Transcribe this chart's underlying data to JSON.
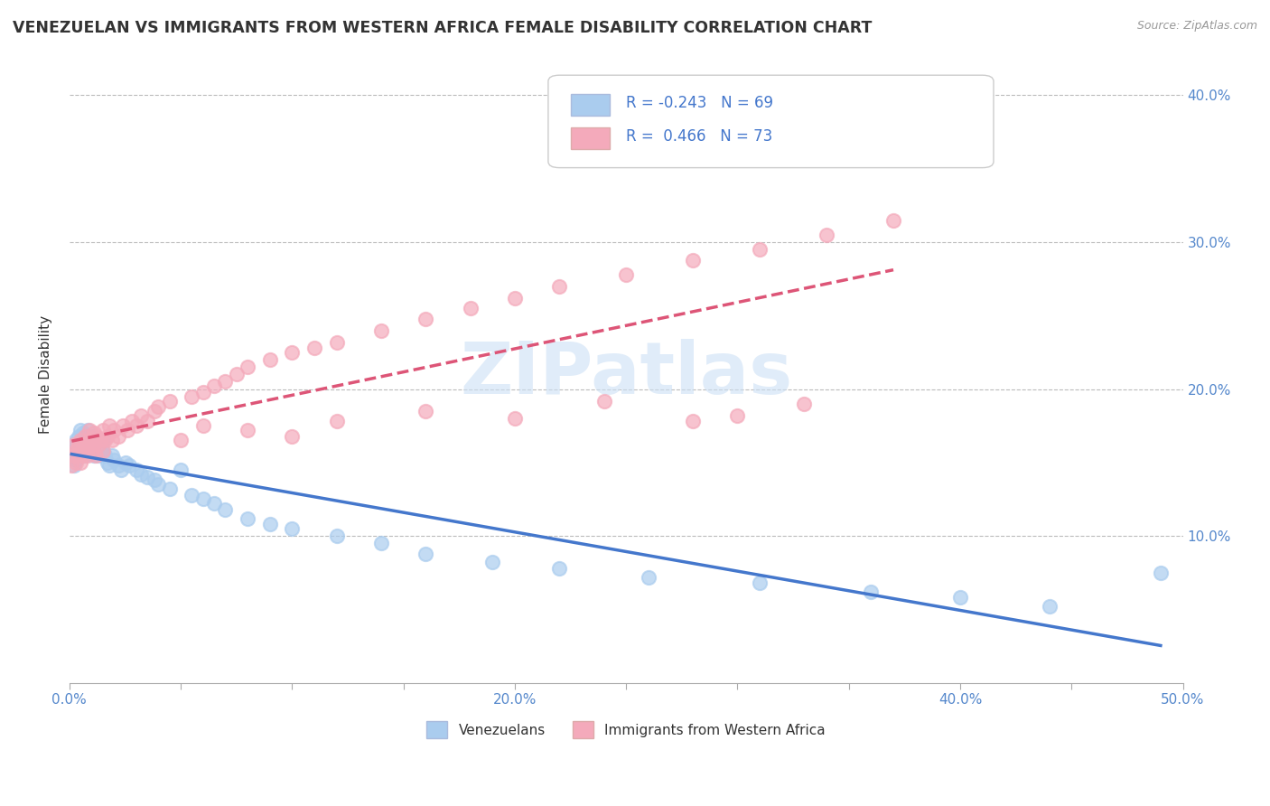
{
  "title": "VENEZUELAN VS IMMIGRANTS FROM WESTERN AFRICA FEMALE DISABILITY CORRELATION CHART",
  "source": "Source: ZipAtlas.com",
  "ylabel": "Female Disability",
  "legend1_label": "Venezuelans",
  "legend2_label": "Immigrants from Western Africa",
  "r1": -0.243,
  "n1": 69,
  "r2": 0.466,
  "n2": 73,
  "color1": "#aaccee",
  "color2": "#f4aabb",
  "line1_color": "#4477cc",
  "line2_color": "#dd5577",
  "line2_style": "--",
  "watermark": "ZIPatlas",
  "xlim": [
    0.0,
    0.5
  ],
  "ylim": [
    0.0,
    0.42
  ],
  "ytick_labels": [
    "10.0%",
    "20.0%",
    "30.0%",
    "40.0%"
  ],
  "background": "#ffffff",
  "grid_color": "#cccccc",
  "venezuelan_x": [
    0.001,
    0.001,
    0.002,
    0.002,
    0.002,
    0.003,
    0.003,
    0.003,
    0.004,
    0.004,
    0.004,
    0.005,
    0.005,
    0.005,
    0.006,
    0.006,
    0.006,
    0.007,
    0.007,
    0.007,
    0.008,
    0.008,
    0.009,
    0.009,
    0.01,
    0.01,
    0.011,
    0.011,
    0.012,
    0.012,
    0.013,
    0.013,
    0.014,
    0.015,
    0.015,
    0.016,
    0.017,
    0.018,
    0.019,
    0.02,
    0.022,
    0.023,
    0.025,
    0.027,
    0.03,
    0.032,
    0.035,
    0.038,
    0.04,
    0.045,
    0.05,
    0.055,
    0.06,
    0.065,
    0.07,
    0.08,
    0.09,
    0.1,
    0.12,
    0.14,
    0.16,
    0.19,
    0.22,
    0.26,
    0.31,
    0.36,
    0.4,
    0.44,
    0.49
  ],
  "venezuelan_y": [
    0.155,
    0.16,
    0.148,
    0.162,
    0.158,
    0.155,
    0.165,
    0.152,
    0.158,
    0.162,
    0.168,
    0.155,
    0.16,
    0.172,
    0.158,
    0.165,
    0.17,
    0.162,
    0.155,
    0.168,
    0.16,
    0.172,
    0.158,
    0.165,
    0.162,
    0.168,
    0.155,
    0.16,
    0.158,
    0.165,
    0.162,
    0.155,
    0.16,
    0.158,
    0.165,
    0.155,
    0.15,
    0.148,
    0.155,
    0.152,
    0.148,
    0.145,
    0.15,
    0.148,
    0.145,
    0.142,
    0.14,
    0.138,
    0.135,
    0.132,
    0.145,
    0.128,
    0.125,
    0.122,
    0.118,
    0.112,
    0.108,
    0.105,
    0.1,
    0.095,
    0.088,
    0.082,
    0.078,
    0.072,
    0.068,
    0.062,
    0.058,
    0.052,
    0.075
  ],
  "western_africa_x": [
    0.001,
    0.002,
    0.002,
    0.003,
    0.003,
    0.004,
    0.004,
    0.005,
    0.005,
    0.006,
    0.006,
    0.007,
    0.007,
    0.008,
    0.008,
    0.009,
    0.009,
    0.01,
    0.01,
    0.011,
    0.011,
    0.012,
    0.012,
    0.013,
    0.014,
    0.015,
    0.015,
    0.016,
    0.017,
    0.018,
    0.019,
    0.02,
    0.022,
    0.024,
    0.026,
    0.028,
    0.03,
    0.032,
    0.035,
    0.038,
    0.04,
    0.045,
    0.05,
    0.055,
    0.06,
    0.065,
    0.07,
    0.075,
    0.08,
    0.09,
    0.1,
    0.11,
    0.12,
    0.14,
    0.16,
    0.18,
    0.2,
    0.22,
    0.25,
    0.28,
    0.31,
    0.34,
    0.37,
    0.06,
    0.08,
    0.1,
    0.2,
    0.16,
    0.12,
    0.24,
    0.28,
    0.3,
    0.33
  ],
  "western_africa_y": [
    0.148,
    0.155,
    0.162,
    0.15,
    0.158,
    0.155,
    0.162,
    0.15,
    0.165,
    0.155,
    0.162,
    0.158,
    0.168,
    0.162,
    0.155,
    0.165,
    0.172,
    0.158,
    0.165,
    0.162,
    0.17,
    0.155,
    0.168,
    0.162,
    0.165,
    0.158,
    0.172,
    0.165,
    0.168,
    0.175,
    0.165,
    0.172,
    0.168,
    0.175,
    0.172,
    0.178,
    0.175,
    0.182,
    0.178,
    0.185,
    0.188,
    0.192,
    0.165,
    0.195,
    0.198,
    0.202,
    0.205,
    0.21,
    0.215,
    0.22,
    0.225,
    0.228,
    0.232,
    0.24,
    0.248,
    0.255,
    0.262,
    0.27,
    0.278,
    0.288,
    0.295,
    0.305,
    0.315,
    0.175,
    0.172,
    0.168,
    0.18,
    0.185,
    0.178,
    0.192,
    0.178,
    0.182,
    0.19
  ]
}
